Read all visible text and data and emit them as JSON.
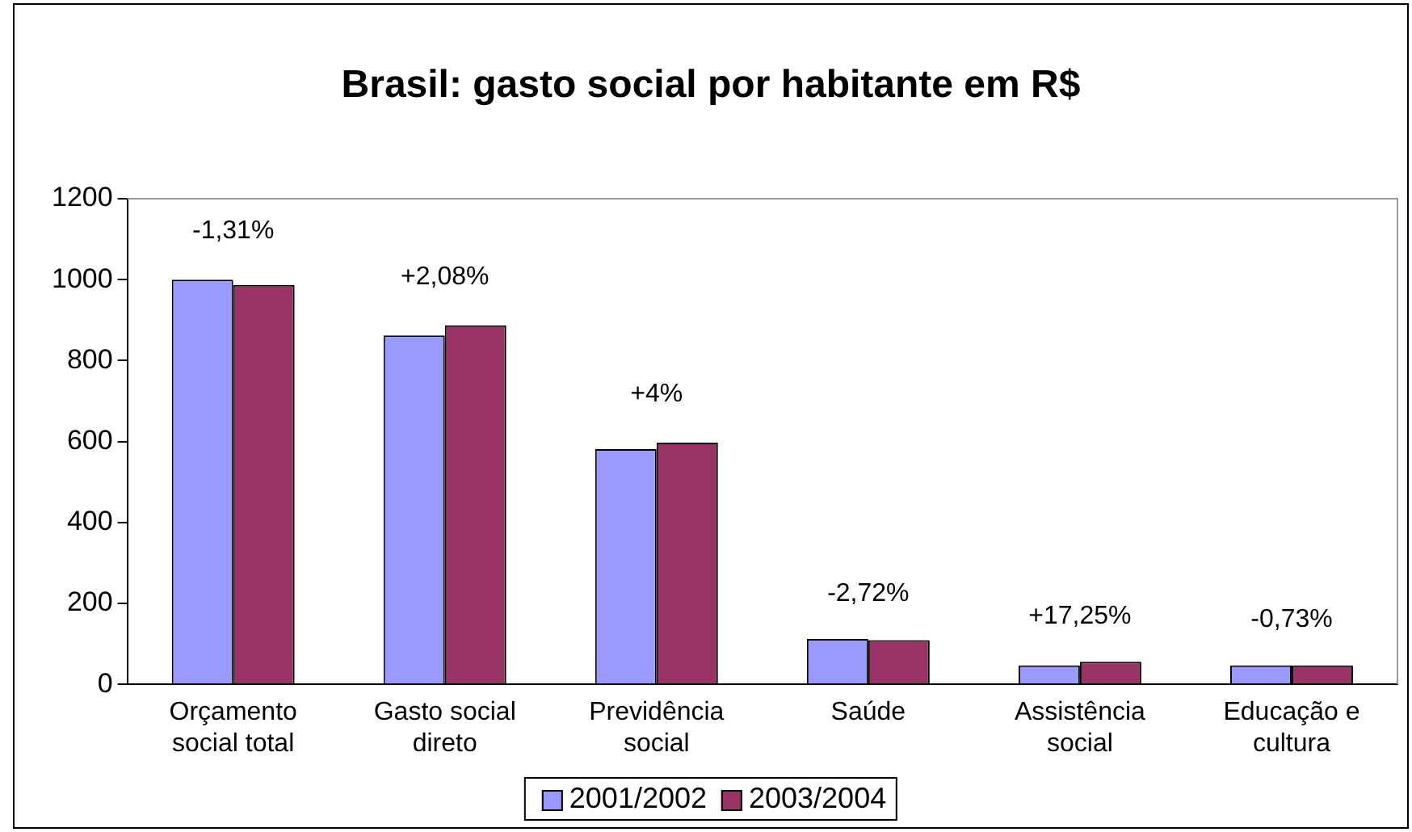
{
  "chart_data": {
    "type": "bar",
    "title": "Brasil: gasto social por habitante em R$",
    "categories": [
      "Orçamento social total",
      "Gasto social direto",
      "Previdência social",
      "Saúde",
      "Assistência social",
      "Educação e cultura"
    ],
    "series": [
      {
        "name": "2001/2002",
        "color": "#9999ff",
        "values": [
          1000,
          862,
          581,
          112,
          47,
          47
        ]
      },
      {
        "name": "2003/2004",
        "color": "#993366",
        "values": [
          987,
          887,
          597,
          109,
          56,
          47
        ]
      }
    ],
    "ylim": [
      0,
      1200
    ],
    "yticks": [
      0,
      200,
      400,
      600,
      800,
      1000,
      1200
    ],
    "grid": false,
    "legend": "bottom",
    "annotations": [
      "-1,31%",
      "+2,08%",
      "+4%",
      "-2,72%",
      "+17,25%",
      "-0,73%"
    ]
  }
}
